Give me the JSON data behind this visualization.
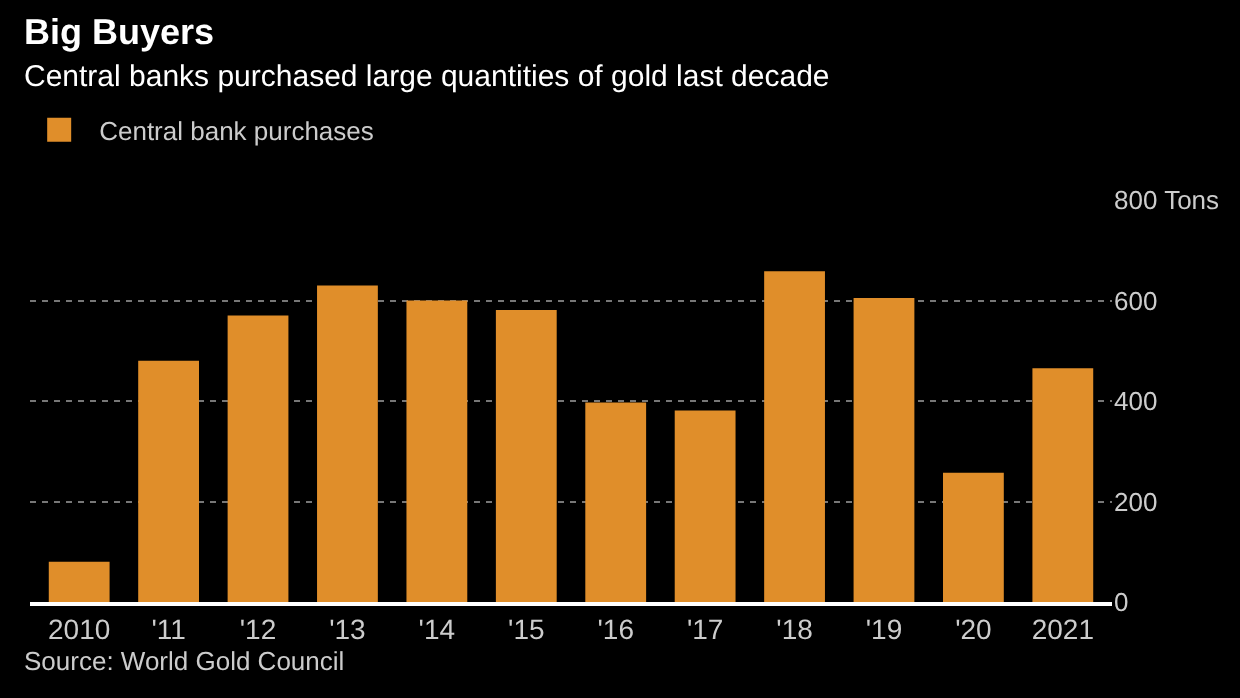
{
  "chart_data": {
    "type": "bar",
    "title": "Big Buyers",
    "subtitle": "Central banks purchased large quantities of gold last decade",
    "categories": [
      "2010",
      "'11",
      "'12",
      "'13",
      "'14",
      "'15",
      "'16",
      "'17",
      "'18",
      "'19",
      "'20",
      "2021"
    ],
    "series": [
      {
        "name": "Central bank purchases",
        "color": "#e08e2a",
        "values": [
          80,
          480,
          570,
          630,
          600,
          581,
          397,
          381,
          658,
          605,
          257,
          465
        ]
      }
    ],
    "ylim": [
      0,
      800
    ],
    "yticks": [
      0,
      200,
      400,
      600,
      {
        "value": 800,
        "label": "800 Tons"
      }
    ],
    "grid": "y",
    "legend": "top left",
    "annotations": [
      "Source: World Gold Council"
    ]
  }
}
